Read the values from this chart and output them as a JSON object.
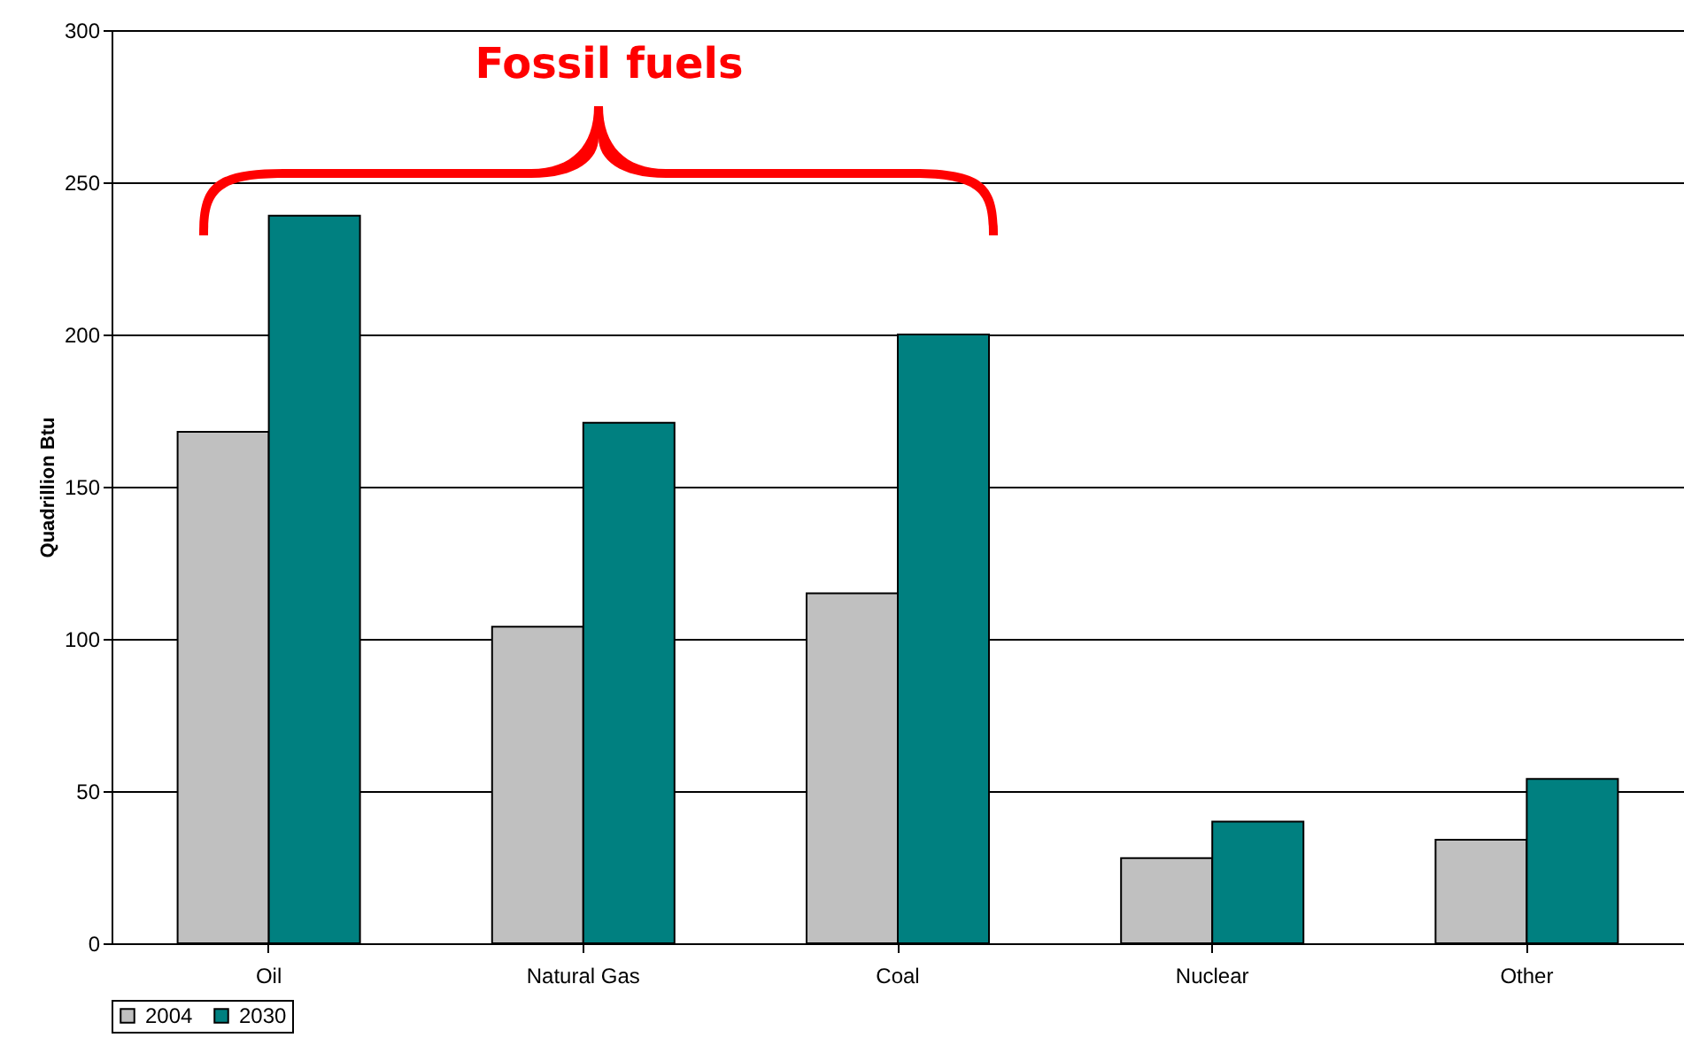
{
  "chart_data": {
    "type": "bar",
    "ylabel": "Quadrillion Btu",
    "categories": [
      "Oil",
      "Natural Gas",
      "Coal",
      "Nuclear",
      "Other"
    ],
    "series": [
      {
        "name": "2004",
        "color": "#c0c0c0",
        "values": [
          168,
          104,
          115,
          28,
          34
        ]
      },
      {
        "name": "2030",
        "color": "#008080",
        "values": [
          239,
          171,
          200,
          40,
          54
        ]
      }
    ],
    "ylim": [
      0,
      300
    ],
    "yticks": [
      0,
      50,
      100,
      150,
      200,
      250,
      300
    ],
    "grid": "y",
    "legend": "bottom",
    "annotations": [
      "Fossil fuels"
    ]
  }
}
